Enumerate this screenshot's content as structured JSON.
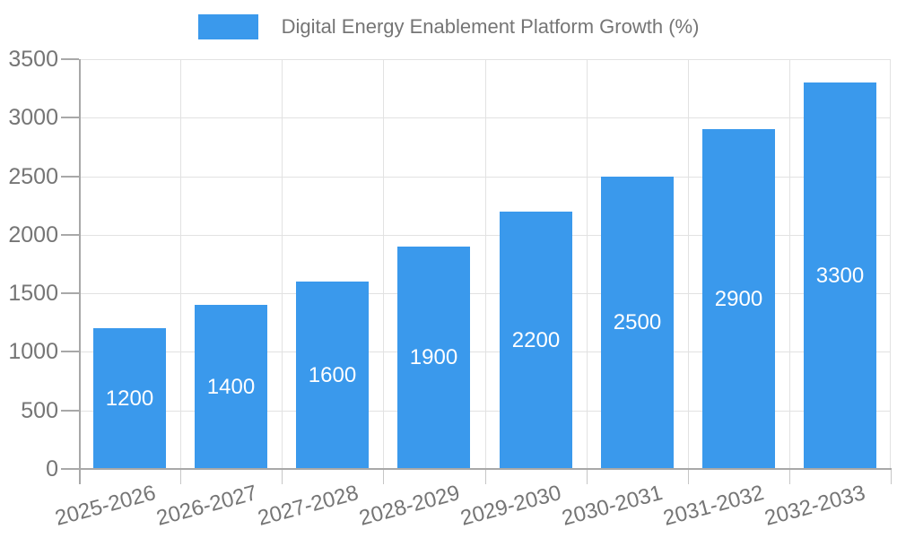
{
  "chart_data": {
    "type": "bar",
    "title": "",
    "legend_label": "Digital Energy Enablement Platform Growth (%)",
    "legend_position": "top",
    "categories": [
      "2025-2026",
      "2026-2027",
      "2027-2028",
      "2028-2029",
      "2029-2030",
      "2030-2031",
      "2031-2032",
      "2032-2033"
    ],
    "values": [
      1200,
      1400,
      1600,
      1900,
      2200,
      2500,
      2900,
      3300
    ],
    "bar_value_labels": [
      "1200",
      "1400",
      "1600",
      "1900",
      "2200",
      "2500",
      "2900",
      "3300"
    ],
    "xlabel": "",
    "ylabel": "",
    "ylim": [
      0,
      3500
    ],
    "ytick_step": 500,
    "yticks": [
      0,
      500,
      1000,
      1500,
      2000,
      2500,
      3000,
      3500
    ],
    "grid": true,
    "colors": {
      "bar": "#3a99ec",
      "bar_label": "#ffffff",
      "axis_text": "#757575",
      "axis_line": "#a8a8a8",
      "tick_minor": "#c6c6c6",
      "grid": "#e2e2e2",
      "background": "#ffffff"
    }
  }
}
